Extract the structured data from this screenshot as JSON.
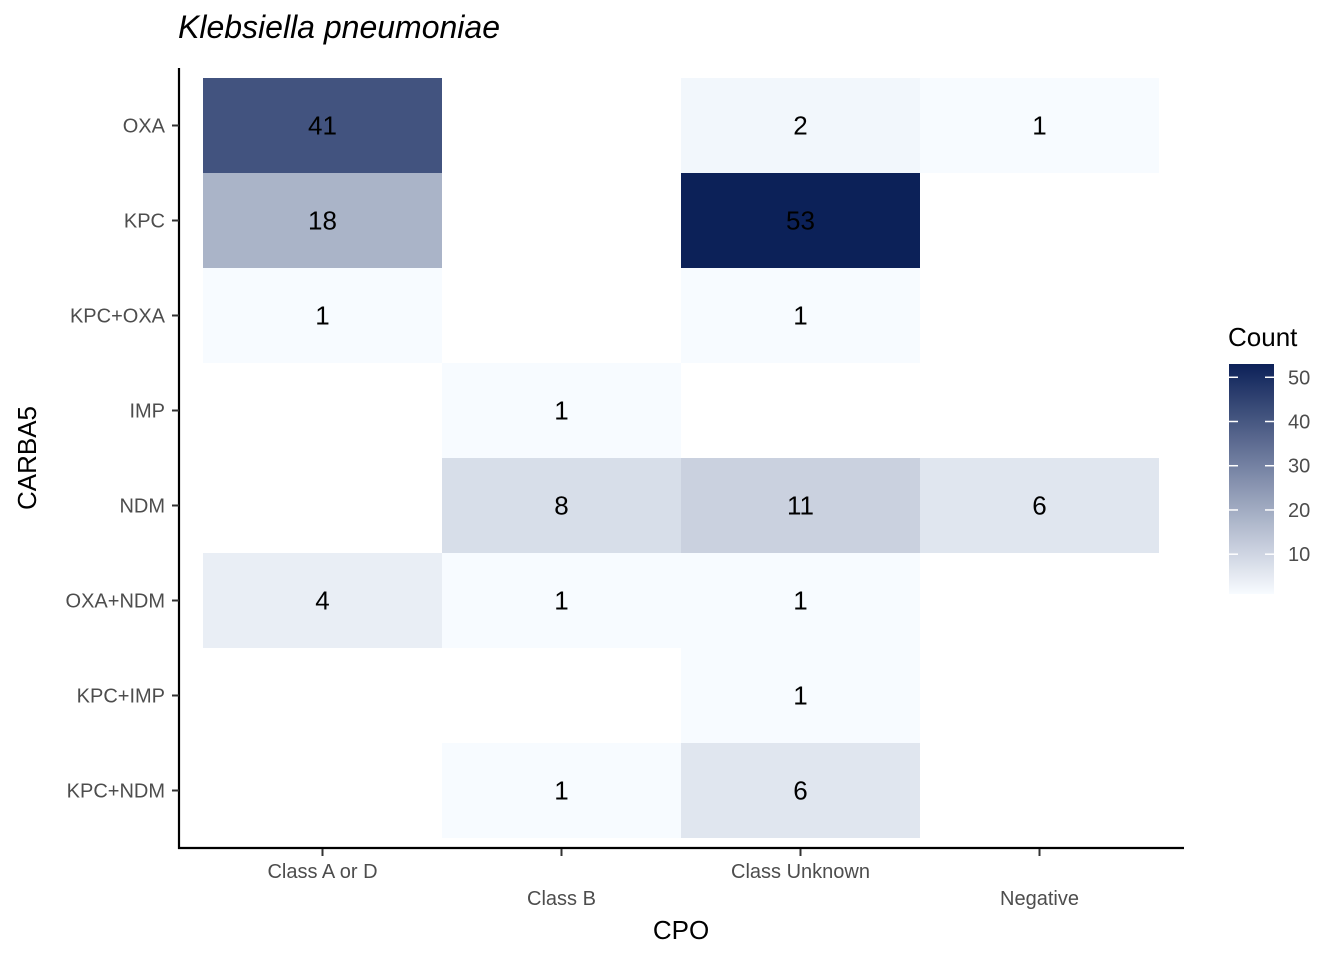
{
  "chart_data": {
    "type": "heatmap",
    "title": "Klebsiella pneumoniae",
    "xlabel": "CPO",
    "ylabel": "CARBA5",
    "x_categories": [
      "Class A or D",
      "Class B",
      "Class Unknown",
      "Negative"
    ],
    "y_categories": [
      "OXA",
      "KPC",
      "KPC+OXA",
      "IMP",
      "NDM",
      "OXA+NDM",
      "KPC+IMP",
      "KPC+NDM"
    ],
    "cells": [
      {
        "x": "Class A or D",
        "y": "OXA",
        "value": 41
      },
      {
        "x": "Class Unknown",
        "y": "OXA",
        "value": 2
      },
      {
        "x": "Negative",
        "y": "OXA",
        "value": 1
      },
      {
        "x": "Class A or D",
        "y": "KPC",
        "value": 18
      },
      {
        "x": "Class Unknown",
        "y": "KPC",
        "value": 53
      },
      {
        "x": "Class A or D",
        "y": "KPC+OXA",
        "value": 1
      },
      {
        "x": "Class Unknown",
        "y": "KPC+OXA",
        "value": 1
      },
      {
        "x": "Class B",
        "y": "IMP",
        "value": 1
      },
      {
        "x": "Class B",
        "y": "NDM",
        "value": 8
      },
      {
        "x": "Class Unknown",
        "y": "NDM",
        "value": 11
      },
      {
        "x": "Negative",
        "y": "NDM",
        "value": 6
      },
      {
        "x": "Class A or D",
        "y": "OXA+NDM",
        "value": 4
      },
      {
        "x": "Class B",
        "y": "OXA+NDM",
        "value": 1
      },
      {
        "x": "Class Unknown",
        "y": "OXA+NDM",
        "value": 1
      },
      {
        "x": "Class Unknown",
        "y": "KPC+IMP",
        "value": 1
      },
      {
        "x": "Class B",
        "y": "KPC+NDM",
        "value": 1
      },
      {
        "x": "Class Unknown",
        "y": "KPC+NDM",
        "value": 6
      }
    ],
    "legend": {
      "title": "Count",
      "ticks": [
        10,
        20,
        30,
        40,
        50
      ],
      "range": [
        1,
        53
      ],
      "low_color": "#f7fbff",
      "high_color": "#0c2158",
      "placement": "right"
    },
    "grid": false
  }
}
